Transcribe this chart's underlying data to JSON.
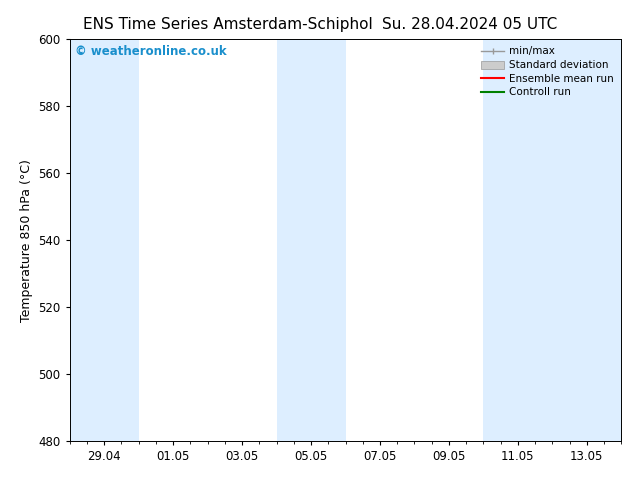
{
  "title_left": "ENS Time Series Amsterdam-Schiphol",
  "title_right": "Su. 28.04.2024 05 UTC",
  "ylabel": "Temperature 850 hPa (°C)",
  "ylim": [
    480,
    600
  ],
  "yticks": [
    480,
    500,
    520,
    540,
    560,
    580,
    600
  ],
  "xtick_labels": [
    "29.04",
    "01.05",
    "03.05",
    "05.05",
    "07.05",
    "09.05",
    "11.05",
    "13.05"
  ],
  "xtick_positions": [
    1,
    3,
    5,
    7,
    9,
    11,
    13,
    15
  ],
  "xlim": [
    0,
    16
  ],
  "shaded_bands": [
    {
      "x_start": 0.0,
      "x_end": 2.0
    },
    {
      "x_start": 6.0,
      "x_end": 8.0
    },
    {
      "x_start": 12.0,
      "x_end": 16.0
    }
  ],
  "shaded_color": "#ddeeff",
  "watermark_text": "© weatheronline.co.uk",
  "watermark_color": "#1a8fcc",
  "background_color": "#ffffff",
  "legend_labels": [
    "min/max",
    "Standard deviation",
    "Ensemble mean run",
    "Controll run"
  ],
  "legend_colors": [
    "#aaaaaa",
    "#cccccc",
    "#ff0000",
    "#008000"
  ],
  "title_fontsize": 11,
  "axis_label_fontsize": 9,
  "tick_fontsize": 8.5
}
